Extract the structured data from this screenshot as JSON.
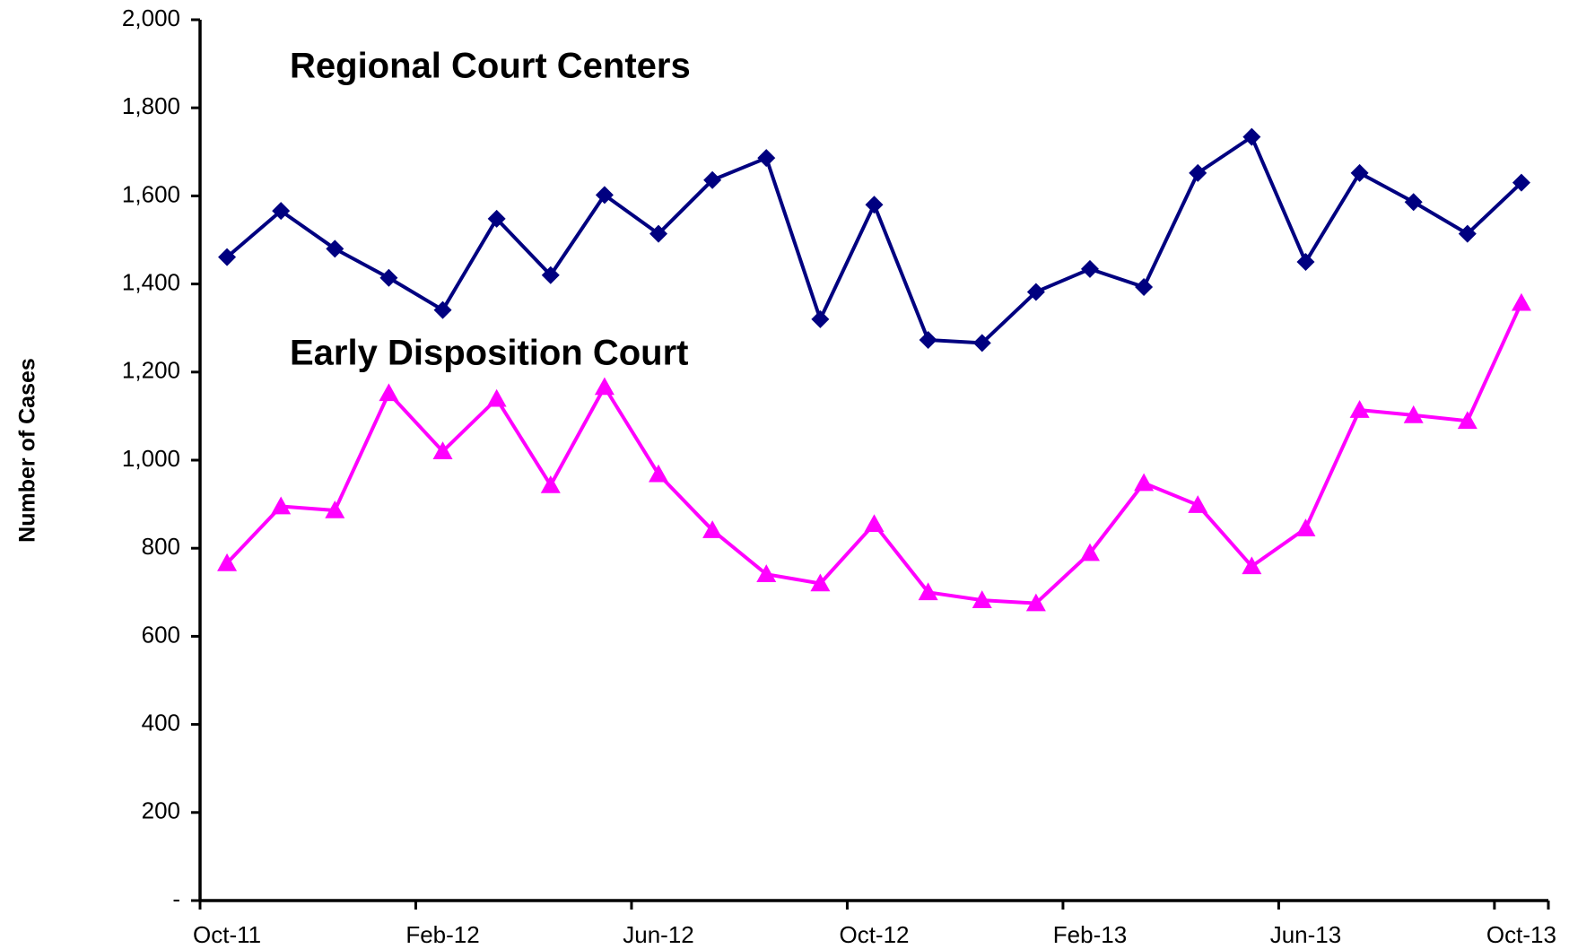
{
  "chart_data": {
    "type": "line",
    "y_label": "Number of Cases",
    "categories": [
      "Oct-11",
      null,
      null,
      null,
      "Feb-12",
      null,
      null,
      null,
      "Jun-12",
      null,
      null,
      null,
      "Oct-12",
      null,
      null,
      null,
      "Feb-13",
      null,
      null,
      null,
      "Jun-13",
      null,
      null,
      null,
      "Oct-13"
    ],
    "series": [
      {
        "name": "Regional Court Centers",
        "color": "#000080",
        "marker": "diamond",
        "values": [
          1461,
          1566,
          1480,
          1414,
          1341,
          1548,
          1420,
          1602,
          1514,
          1636,
          1686,
          1320,
          1580,
          1273,
          1266,
          1382,
          1434,
          1393,
          1652,
          1734,
          1450,
          1652,
          1586,
          1514,
          1630
        ]
      },
      {
        "name": "Early Disposition Court",
        "color": "#ff00ff",
        "marker": "triangle",
        "values": [
          766,
          895,
          886,
          1152,
          1020,
          1139,
          943,
          1166,
          968,
          841,
          741,
          720,
          855,
          700,
          682,
          675,
          789,
          948,
          898,
          759,
          845,
          1114,
          1102,
          1089,
          1357
        ]
      }
    ],
    "ylim": [
      0,
      2000
    ],
    "yticks": [
      {
        "value": 0,
        "label": "-"
      },
      200,
      400,
      600,
      800,
      {
        "value": 1000,
        "label": "1,000"
      },
      {
        "value": 1200,
        "label": "1,200"
      },
      {
        "value": 1400,
        "label": "1,400"
      },
      {
        "value": 1600,
        "label": "1,600"
      },
      {
        "value": 1800,
        "label": "1,800"
      },
      {
        "value": 2000,
        "label": "2,000"
      }
    ],
    "grid": false
  }
}
